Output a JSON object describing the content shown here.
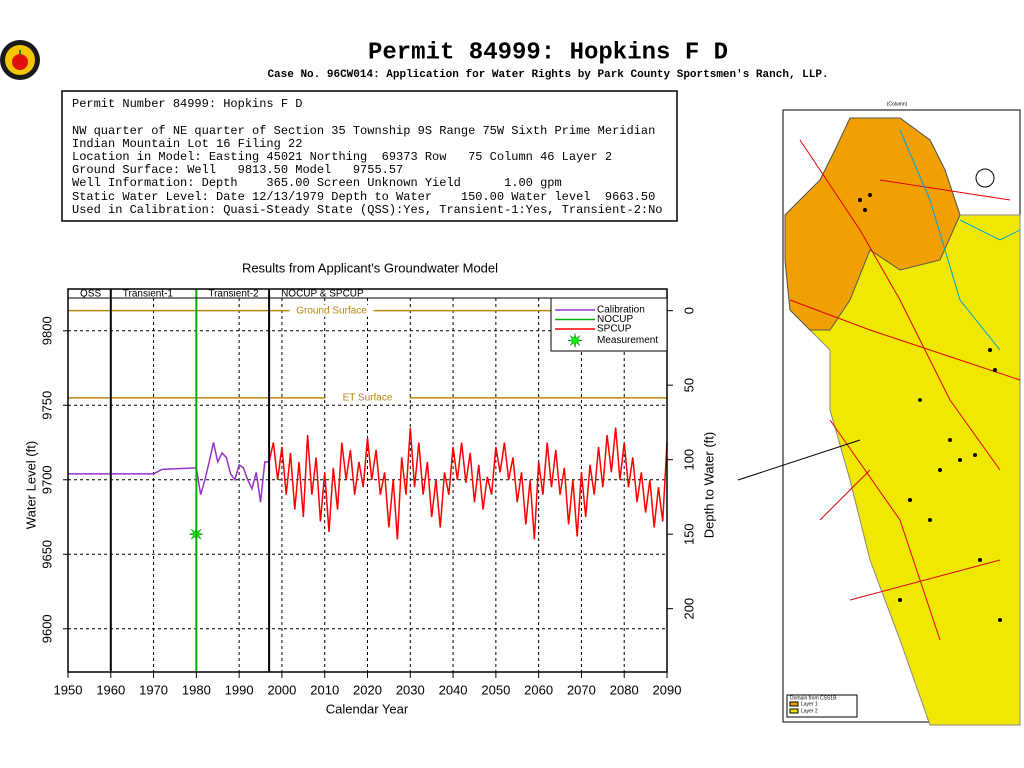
{
  "header": {
    "title": "Permit 84999:   Hopkins F D",
    "subtitle": "Case No. 96CW014: Application for Water Rights by Park County Sportsmen's Ranch, LLP."
  },
  "info": {
    "lines": [
      "Permit Number 84999: Hopkins F D",
      "NW quarter of NE quarter of Section 35 Township 9S Range 75W Sixth Prime Meridian",
      "Indian Mountain Lot 16 Filing 22",
      "Location in Model: Easting 45021 Northing  69373 Row   75 Column 46 Layer 2",
      "Ground Surface: Well   9813.50 Model   9755.57",
      "Well Information: Depth    365.00 Screen Unknown Yield      1.00 gpm",
      "Static Water Level: Date 12/13/1979 Depth to Water    150.00 Water level  9663.50",
      "Used in Calibration: Quasi-Steady State (QSS):Yes, Transient-1:Yes, Transient-2:No"
    ]
  },
  "map": {
    "column_label": "(Column)",
    "legend_title": "Domain from CSS1B",
    "layers": [
      "Layer 1",
      "Layer 2"
    ]
  },
  "chart_data": {
    "type": "line",
    "title": "Results from Applicant's Groundwater Model",
    "x_label": "Calendar Year",
    "y_label": "Water Level (ft)",
    "y2_label": "Depth to Water (ft)",
    "xlim": [
      1950,
      2090
    ],
    "xticks": [
      1950,
      1960,
      1970,
      1980,
      1990,
      2000,
      2010,
      2020,
      2030,
      2040,
      2050,
      2060,
      2070,
      2080,
      2090
    ],
    "ylim": [
      9571,
      9822
    ],
    "yticks": [
      9600,
      9650,
      9700,
      9750,
      9800
    ],
    "y2lim": [
      -8.5,
      242.5
    ],
    "y2ticks": [
      0,
      50,
      100,
      150,
      200
    ],
    "y2_inverted": true,
    "grid": true,
    "legend": "upper right",
    "periods": [
      {
        "label": "QSS",
        "start": 1950,
        "end": 1960,
        "color": "#000000"
      },
      {
        "label": "Transient-1",
        "start": 1960,
        "end": 1980,
        "color": "#00b000"
      },
      {
        "label": "Transient-2",
        "start": 1980,
        "end": 1997,
        "color": "#000000"
      },
      {
        "label": "NOCUP  &  SPCUP",
        "start": 1997,
        "end": 2090,
        "color": "#000000"
      }
    ],
    "reference_lines": [
      {
        "label": "Ground Surface",
        "value": 9813.5,
        "color": "#b8860b"
      },
      {
        "label": "ET Surface",
        "value": 9755,
        "color": "#b8860b"
      }
    ],
    "series": [
      {
        "name": "Calibration",
        "color": "#9932cc",
        "x": [
          1950,
          1960,
          1970,
          1972,
          1980,
          1981,
          1982,
          1983,
          1984,
          1985,
          1986,
          1987,
          1988,
          1989,
          1990,
          1991,
          1992,
          1993,
          1994,
          1995,
          1996,
          1997
        ],
        "values": [
          9704,
          9704,
          9704,
          9707,
          9708,
          9690,
          9700,
          9712,
          9725,
          9712,
          9718,
          9715,
          9704,
          9700,
          9710,
          9708,
          9700,
          9694,
          9705,
          9685,
          9712,
          9712
        ]
      },
      {
        "name": "NOCUP",
        "color": "#00b000",
        "x": [],
        "values": []
      },
      {
        "name": "SPCUP",
        "color": "#ff0000",
        "x": [
          1997,
          1998,
          1999,
          2000,
          2001,
          2002,
          2003,
          2004,
          2005,
          2006,
          2007,
          2008,
          2009,
          2010,
          2011,
          2012,
          2013,
          2014,
          2015,
          2016,
          2017,
          2018,
          2019,
          2020,
          2021,
          2022,
          2023,
          2024,
          2025,
          2026,
          2027,
          2028,
          2029,
          2030,
          2031,
          2032,
          2033,
          2034,
          2035,
          2036,
          2037,
          2038,
          2039,
          2040,
          2041,
          2042,
          2043,
          2044,
          2045,
          2046,
          2047,
          2048,
          2049,
          2050,
          2051,
          2052,
          2053,
          2054,
          2055,
          2056,
          2057,
          2058,
          2059,
          2060,
          2061,
          2062,
          2063,
          2064,
          2065,
          2066,
          2067,
          2068,
          2069,
          2070,
          2071,
          2072,
          2073,
          2074,
          2075,
          2076,
          2077,
          2078,
          2079,
          2080,
          2081,
          2082,
          2083,
          2084,
          2085,
          2086,
          2087,
          2088,
          2089,
          2090
        ],
        "values": [
          9712,
          9725,
          9700,
          9722,
          9690,
          9718,
          9680,
          9712,
          9675,
          9730,
          9690,
          9715,
          9672,
          9705,
          9665,
          9708,
          9680,
          9725,
          9700,
          9720,
          9690,
          9712,
          9695,
          9728,
          9700,
          9720,
          9690,
          9705,
          9668,
          9700,
          9660,
          9715,
          9690,
          9735,
          9695,
          9725,
          9690,
          9712,
          9675,
          9700,
          9668,
          9705,
          9690,
          9722,
          9700,
          9725,
          9698,
          9718,
          9685,
          9710,
          9680,
          9702,
          9690,
          9722,
          9705,
          9725,
          9700,
          9715,
          9685,
          9705,
          9670,
          9700,
          9660,
          9712,
          9690,
          9725,
          9695,
          9720,
          9690,
          9708,
          9670,
          9700,
          9662,
          9705,
          9675,
          9710,
          9690,
          9722,
          9695,
          9730,
          9705,
          9735,
          9700,
          9725,
          9695,
          9715,
          9685,
          9705,
          9678,
          9700,
          9668,
          9695,
          9672,
          9725
        ]
      }
    ],
    "measurement": {
      "name": "Measurement",
      "color": "#00ff00",
      "x": 1979.95,
      "value": 9663.5
    }
  }
}
